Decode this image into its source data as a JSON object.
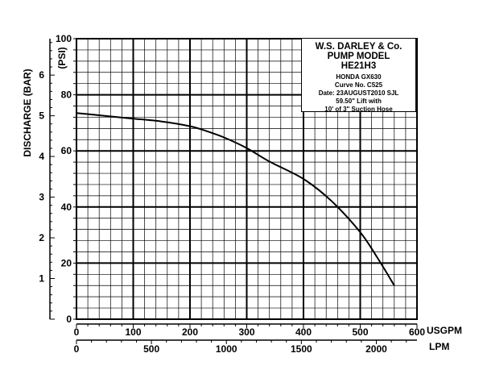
{
  "legend_box": {
    "company": "W.S. DARLEY & Co.",
    "heading": "PUMP MODEL",
    "model": "HE21H3",
    "engine": "HONDA GX630",
    "curve": "Curve No. C525",
    "date": "Date: 23AUGUST2010 SJL",
    "lift": "59.50\" Lift with",
    "hose": "10' of 3\" Suction Hose"
  },
  "chart_data": {
    "type": "line",
    "y_left_label": "DISCHARGE (BAR)",
    "y_right_label": "(PSI)",
    "x_top_unit": "USGPM",
    "x_bottom_unit": "LPM",
    "psi_ticks": [
      "0",
      "20",
      "40",
      "60",
      "80",
      "100"
    ],
    "bar_ticks": [
      "1",
      "2",
      "3",
      "4",
      "5",
      "6"
    ],
    "usgpm_ticks": [
      "0",
      "100",
      "200",
      "300",
      "400",
      "500",
      "600"
    ],
    "lpm_ticks": [
      "0",
      "500",
      "1000",
      "1500",
      "2000"
    ],
    "xlim_usgpm": [
      0,
      600
    ],
    "ylim_psi": [
      0,
      100
    ],
    "grid": true,
    "series": [
      {
        "x_usgpm": [
          0,
          50,
          100,
          150,
          200,
          230,
          260,
          300,
          340,
          400,
          450,
          500,
          530,
          560
        ],
        "y_psi": [
          73.5,
          72.5,
          71.5,
          70.5,
          68.8,
          67,
          64.8,
          61,
          56.2,
          50,
          42,
          31,
          22,
          12
        ]
      }
    ]
  }
}
